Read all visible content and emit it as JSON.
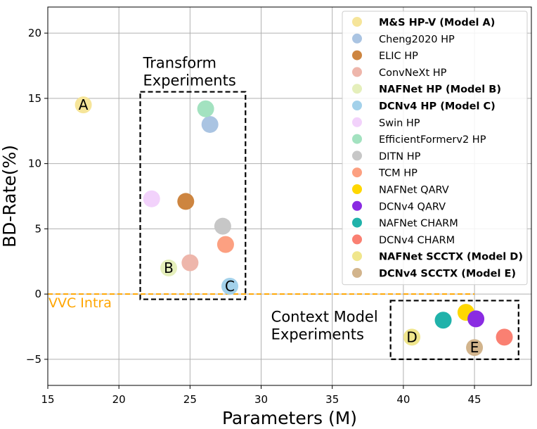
{
  "chart_data": {
    "type": "scatter",
    "xlabel": "Parameters (M)",
    "ylabel": "BD-Rate(%)",
    "xlim": [
      15,
      49
    ],
    "ylim": [
      -7,
      22
    ],
    "xticks": [
      15,
      20,
      25,
      30,
      35,
      40,
      45
    ],
    "yticks": [
      -5,
      0,
      5,
      10,
      15,
      20
    ],
    "grid": true,
    "legend_position": "top-right",
    "reference_line": {
      "label": "VVC Intra",
      "y": 0,
      "x_range": [
        15,
        45
      ],
      "color": "#ffa500"
    },
    "group_boxes": [
      {
        "label_lines": [
          "Transform",
          "Experiments"
        ],
        "x_range": [
          21.5,
          28.9
        ],
        "y_range": [
          -0.4,
          15.5
        ]
      },
      {
        "label_lines": [
          "Context Model",
          "Experiments"
        ],
        "x_range": [
          39.1,
          48.1
        ],
        "y_range": [
          -5.0,
          -0.5
        ]
      }
    ],
    "series": [
      {
        "name": "M&S HP-V (Model A)",
        "bold": true,
        "color": "#f6e59a",
        "x": 17.5,
        "y": 14.5,
        "marker_label": "A"
      },
      {
        "name": "Cheng2020 HP",
        "bold": false,
        "color": "#aac4e2",
        "x": 26.4,
        "y": 13.0,
        "marker_label": ""
      },
      {
        "name": "ELIC HP",
        "bold": false,
        "color": "#cd8540",
        "x": 24.7,
        "y": 7.1,
        "marker_label": ""
      },
      {
        "name": "ConvNeXt HP",
        "bold": false,
        "color": "#eeb6ab",
        "x": 25.0,
        "y": 2.4,
        "marker_label": ""
      },
      {
        "name": "NAFNet HP (Model B)",
        "bold": true,
        "color": "#e5efbb",
        "x": 23.5,
        "y": 2.0,
        "marker_label": "B"
      },
      {
        "name": "DCNv4 HP (Model C)",
        "bold": true,
        "color": "#a3d1ea",
        "x": 27.8,
        "y": 0.6,
        "marker_label": "C"
      },
      {
        "name": "Swin HP",
        "bold": false,
        "color": "#f2d2fb",
        "x": 22.3,
        "y": 7.3,
        "marker_label": ""
      },
      {
        "name": "EfficientFormerv2 HP",
        "bold": false,
        "color": "#a3e2c0",
        "x": 26.1,
        "y": 14.2,
        "marker_label": ""
      },
      {
        "name": "DITN HP",
        "bold": false,
        "color": "#c7c7c7",
        "x": 27.3,
        "y": 5.2,
        "marker_label": ""
      },
      {
        "name": "TCM HP",
        "bold": false,
        "color": "#fca081",
        "x": 27.5,
        "y": 3.8,
        "marker_label": ""
      },
      {
        "name": "NAFNet QARV",
        "bold": false,
        "color": "#ffd700",
        "x": 44.4,
        "y": -1.4,
        "marker_label": ""
      },
      {
        "name": "DCNv4 QARV",
        "bold": false,
        "color": "#8a2be2",
        "x": 45.1,
        "y": -1.9,
        "marker_label": ""
      },
      {
        "name": "NAFNet CHARM",
        "bold": false,
        "color": "#20b2aa",
        "x": 42.8,
        "y": -2.0,
        "marker_label": ""
      },
      {
        "name": "DCNv4 CHARM",
        "bold": false,
        "color": "#fa8072",
        "x": 47.1,
        "y": -3.3,
        "marker_label": ""
      },
      {
        "name": "NAFNet SCCTX (Model D)",
        "bold": true,
        "color": "#f0e68c",
        "x": 40.6,
        "y": -3.3,
        "marker_label": "D"
      },
      {
        "name": "DCNv4 SCCTX (Model E)",
        "bold": true,
        "color": "#d2b48c",
        "x": 45.0,
        "y": -4.1,
        "marker_label": "E"
      }
    ]
  }
}
